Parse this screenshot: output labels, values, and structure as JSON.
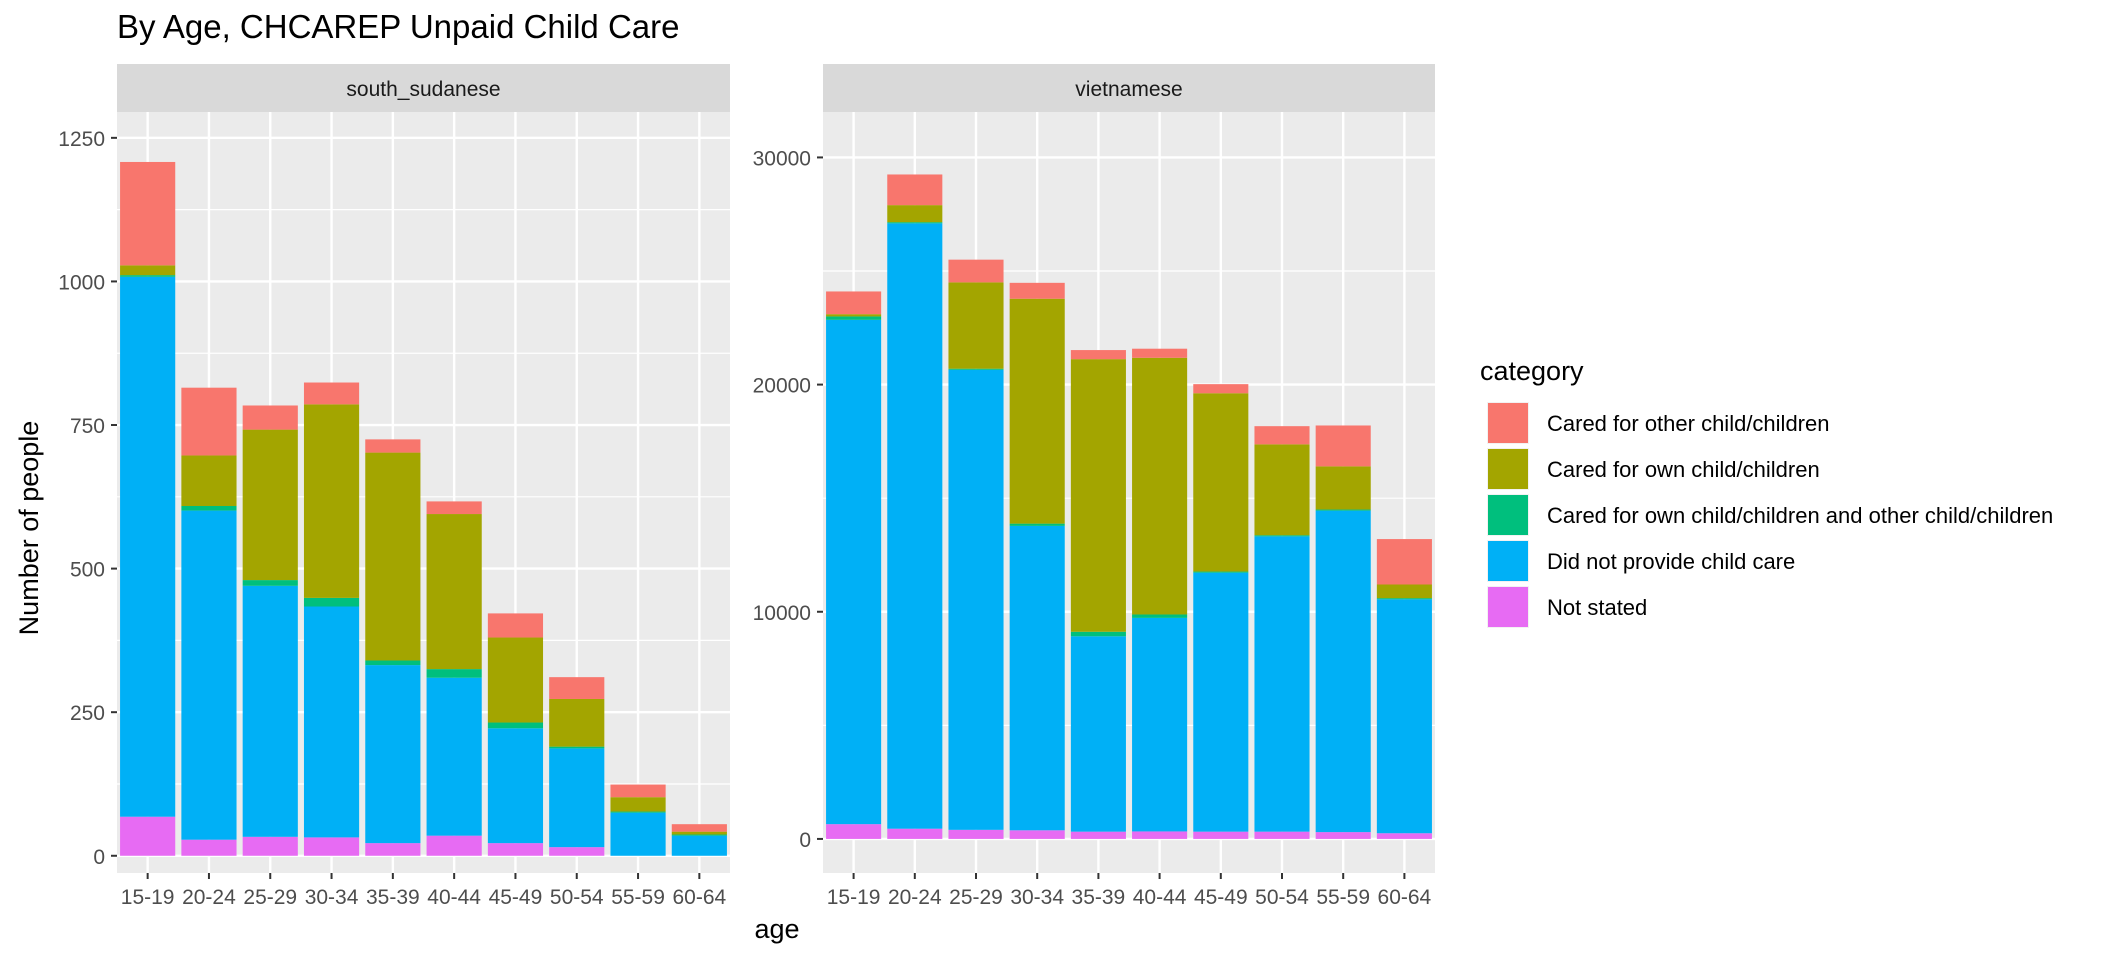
{
  "chart_data": {
    "type": "bar",
    "stacked": true,
    "title": "By Age,  CHCAREP Unpaid Child Care",
    "xlabel": "age",
    "ylabel": "Number of people",
    "categories": [
      "15-19",
      "20-24",
      "25-29",
      "30-34",
      "35-39",
      "40-44",
      "45-49",
      "50-54",
      "55-59",
      "60-64"
    ],
    "legend": {
      "title": "category",
      "position": "right",
      "entries": [
        {
          "name": "Cared for other child/children",
          "color": "#F8766D"
        },
        {
          "name": "Cared for own child/children",
          "color": "#A3A500"
        },
        {
          "name": "Cared for own child/children and other child/children",
          "color": "#00BF7D"
        },
        {
          "name": "Did not provide child care",
          "color": "#00B0F6"
        },
        {
          "name": "Not stated",
          "color": "#E76BF3"
        }
      ]
    },
    "stack_order_bottom_to_top": [
      "Not stated",
      "Did not provide child care",
      "Cared for own child/children and other child/children",
      "Cared for own child/children",
      "Cared for other child/children"
    ],
    "grid": true,
    "panels": [
      {
        "strip": "south_sudanese",
        "ylim": [
          -30,
          1295
        ],
        "yticks": [
          0,
          250,
          500,
          750,
          1000,
          1250
        ],
        "ytick_labels": [
          "0",
          "250",
          "500",
          "750",
          "1000",
          "1250"
        ],
        "series": [
          {
            "name": "Not stated",
            "values": [
              68,
              28,
              33,
              32,
              22,
              35,
              22,
              15,
              0,
              0
            ]
          },
          {
            "name": "Did not provide child care",
            "values": [
              940,
              573,
              437,
              402,
              310,
              275,
              200,
              172,
              75,
              35
            ]
          },
          {
            "name": "Cared for own child/children and other child/children",
            "values": [
              3,
              8,
              10,
              15,
              8,
              15,
              10,
              3,
              2,
              2
            ]
          },
          {
            "name": "Cared for own child/children",
            "values": [
              17,
              88,
              262,
              337,
              362,
              270,
              148,
              83,
              25,
              5
            ]
          },
          {
            "name": "Cared for other child/children",
            "values": [
              180,
              118,
              42,
              38,
              23,
              22,
              42,
              38,
              22,
              13
            ]
          }
        ]
      },
      {
        "strip": "vietnamese",
        "ylim": [
          -1500,
          32000
        ],
        "yticks": [
          0,
          10000,
          20000,
          30000
        ],
        "ytick_labels": [
          "0",
          "10000",
          "20000",
          "30000"
        ],
        "series": [
          {
            "name": "Not stated",
            "values": [
              650,
              450,
              400,
              380,
              320,
              330,
              320,
              320,
              300,
              250
            ]
          },
          {
            "name": "Did not provide child care",
            "values": [
              22200,
              26650,
              20250,
              13400,
              8600,
              9400,
              11400,
              13000,
              14150,
              10300
            ]
          },
          {
            "name": "Cared for own child/children and other child/children",
            "values": [
              150,
              50,
              50,
              100,
              200,
              150,
              50,
              50,
              50,
              50
            ]
          },
          {
            "name": "Cared for own child/children",
            "values": [
              100,
              750,
              3800,
              9900,
              12000,
              11300,
              7850,
              4000,
              1900,
              600
            ]
          },
          {
            "name": "Cared for other child/children",
            "values": [
              1000,
              1350,
              1000,
              700,
              400,
              400,
              400,
              800,
              1800,
              2000
            ]
          }
        ]
      }
    ]
  },
  "style": {
    "panel_background": "#EBEBEB",
    "strip_background": "#D9D9D9",
    "grid_color": "#FFFFFF",
    "axis_text_color": "#4D4D4D",
    "title_color": "#000000"
  }
}
